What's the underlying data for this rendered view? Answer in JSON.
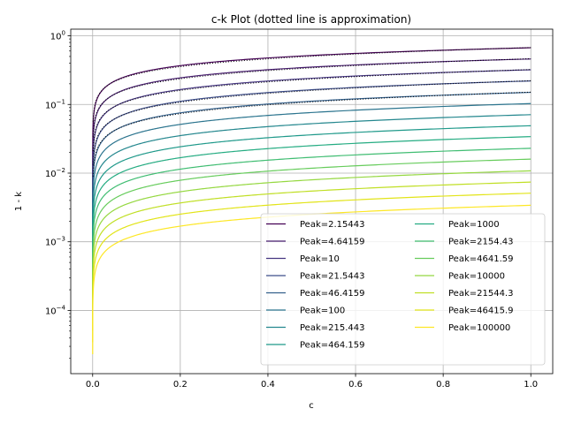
{
  "chart_data": {
    "type": "line",
    "title": "c-k Plot (dotted line is approximation)",
    "xlabel": "c",
    "ylabel": "1 - k",
    "xlim": [
      -0.05,
      1.05
    ],
    "ylim": [
      1.2e-05,
      1.25
    ],
    "yscale": "log",
    "grid": true,
    "legend_placement": "lower-right",
    "legend_columns": 2,
    "x_ticks": [
      {
        "value": 0.0,
        "label": "0.0"
      },
      {
        "value": 0.2,
        "label": "0.2"
      },
      {
        "value": 0.4,
        "label": "0.4"
      },
      {
        "value": 0.6,
        "label": "0.6"
      },
      {
        "value": 0.8,
        "label": "0.8"
      },
      {
        "value": 1.0,
        "label": "1.0"
      }
    ],
    "y_ticks": [
      {
        "value": 0.0001,
        "base": "10",
        "exp": "−4"
      },
      {
        "value": 0.001,
        "base": "10",
        "exp": "−3"
      },
      {
        "value": 0.01,
        "base": "10",
        "exp": "−2"
      },
      {
        "value": 0.1,
        "base": "10",
        "exp": "−1"
      },
      {
        "value": 1,
        "base": "10",
        "exp": "0"
      }
    ],
    "approximation": {
      "style": "dotted",
      "color": "#000000",
      "shown_for_first_n_series": 5
    },
    "series": [
      {
        "name": "Peak=2.15443",
        "peak": 2.15443,
        "color": "#440154",
        "y_at_c1": 0.67,
        "y_at_c001": 0.12
      },
      {
        "name": "Peak=4.64159",
        "peak": 4.64159,
        "color": "#481d6f",
        "y_at_c1": 0.46,
        "y_at_c001": 0.075
      },
      {
        "name": "Peak=10",
        "peak": 10,
        "color": "#453581",
        "y_at_c1": 0.32,
        "y_at_c001": 0.048
      },
      {
        "name": "Peak=21.5443",
        "peak": 21.5443,
        "color": "#3d4d8a",
        "y_at_c1": 0.22,
        "y_at_c001": 0.031
      },
      {
        "name": "Peak=46.4159",
        "peak": 46.4159,
        "color": "#34618d",
        "y_at_c1": 0.15,
        "y_at_c001": 0.021
      },
      {
        "name": "Peak=100",
        "peak": 100,
        "color": "#2b748e",
        "y_at_c1": 0.103,
        "y_at_c001": 0.014
      },
      {
        "name": "Peak=215.443",
        "peak": 215.443,
        "color": "#24878e",
        "y_at_c1": 0.071,
        "y_at_c001": 0.0095
      },
      {
        "name": "Peak=464.159",
        "peak": 464.159,
        "color": "#1f998a",
        "y_at_c1": 0.049,
        "y_at_c001": 0.0065
      },
      {
        "name": "Peak=1000",
        "peak": 1000,
        "color": "#25ac82",
        "y_at_c1": 0.034,
        "y_at_c001": 0.0045
      },
      {
        "name": "Peak=2154.43",
        "peak": 2154.43,
        "color": "#40bd72",
        "y_at_c1": 0.023,
        "y_at_c001": 0.0031
      },
      {
        "name": "Peak=4641.59",
        "peak": 4641.59,
        "color": "#67cc5c",
        "y_at_c1": 0.016,
        "y_at_c001": 0.0021
      },
      {
        "name": "Peak=10000",
        "peak": 10000,
        "color": "#95d840",
        "y_at_c1": 0.0108,
        "y_at_c001": 0.00145
      },
      {
        "name": "Peak=21544.3",
        "peak": 21544.3,
        "color": "#c0df25",
        "y_at_c1": 0.0074,
        "y_at_c001": 0.001
      },
      {
        "name": "Peak=46415.9",
        "peak": 46415.9,
        "color": "#e2e418",
        "y_at_c1": 0.0051,
        "y_at_c001": 0.00068
      },
      {
        "name": "Peak=100000",
        "peak": 100000,
        "color": "#fde725",
        "y_at_c1": 0.0034,
        "y_at_c001": 0.00046,
        "y_at_c0": 2.3e-05
      }
    ]
  }
}
